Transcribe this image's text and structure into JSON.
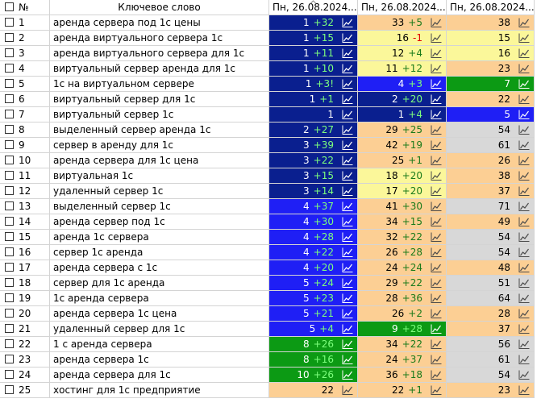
{
  "header": {
    "num_label": "№",
    "keyword_label": "Ключевое слово",
    "periods": [
      "Пн, 26.08.2024...",
      "Пн, 26.08.2024...",
      "Пн, 26.08.2024..."
    ]
  },
  "colors": {
    "dark_blue": "#0a1f8f",
    "blue": "#1f1ff5",
    "green": "#0c9a14",
    "yellow": "#fbf79a",
    "orange": "#fccf94",
    "gray": "#d8d8d8",
    "light_text": "#ffffff",
    "delta_up_light": "#7dff7d",
    "delta_up_dark": "#1a7a1a",
    "delta_down": "#e00000"
  },
  "chart_icon_name": "line-chart-icon",
  "rows": [
    {
      "num": "1",
      "keyword": "аренда сервера под 1с цены",
      "cells": [
        {
          "pos": "1",
          "delta": "+32",
          "bg": "dark_blue"
        },
        {
          "pos": "33",
          "delta": "+5",
          "bg": "orange"
        },
        {
          "pos": "38",
          "delta": "",
          "bg": "orange"
        }
      ]
    },
    {
      "num": "2",
      "keyword": "аренда виртуального сервера 1с",
      "cells": [
        {
          "pos": "1",
          "delta": "+15",
          "bg": "dark_blue"
        },
        {
          "pos": "16",
          "delta": "-1",
          "bg": "yellow"
        },
        {
          "pos": "15",
          "delta": "",
          "bg": "yellow"
        }
      ]
    },
    {
      "num": "3",
      "keyword": "аренда виртуального сервера для 1с",
      "cells": [
        {
          "pos": "1",
          "delta": "+11",
          "bg": "dark_blue"
        },
        {
          "pos": "12",
          "delta": "+4",
          "bg": "yellow"
        },
        {
          "pos": "16",
          "delta": "",
          "bg": "yellow"
        }
      ]
    },
    {
      "num": "4",
      "keyword": "виртуальный сервер аренда для 1с",
      "cells": [
        {
          "pos": "1",
          "delta": "+10",
          "bg": "dark_blue"
        },
        {
          "pos": "11",
          "delta": "+12",
          "bg": "yellow"
        },
        {
          "pos": "23",
          "delta": "",
          "bg": "orange"
        }
      ]
    },
    {
      "num": "5",
      "keyword": "1с на виртуальном сервере",
      "cells": [
        {
          "pos": "1",
          "delta": "+3!",
          "bg": "dark_blue"
        },
        {
          "pos": "4",
          "delta": "+3",
          "bg": "blue"
        },
        {
          "pos": "7",
          "delta": "",
          "bg": "green"
        }
      ]
    },
    {
      "num": "6",
      "keyword": "виртуальный сервер для 1с",
      "cells": [
        {
          "pos": "1",
          "delta": "+1",
          "bg": "dark_blue"
        },
        {
          "pos": "2",
          "delta": "+20",
          "bg": "dark_blue"
        },
        {
          "pos": "22",
          "delta": "",
          "bg": "orange"
        }
      ]
    },
    {
      "num": "7",
      "keyword": "виртуальный сервер 1с",
      "cells": [
        {
          "pos": "1",
          "delta": "",
          "bg": "dark_blue"
        },
        {
          "pos": "1",
          "delta": "+4",
          "bg": "dark_blue"
        },
        {
          "pos": "5",
          "delta": "",
          "bg": "blue"
        }
      ]
    },
    {
      "num": "8",
      "keyword": "выделенный сервер аренда 1с",
      "cells": [
        {
          "pos": "2",
          "delta": "+27",
          "bg": "dark_blue"
        },
        {
          "pos": "29",
          "delta": "+25",
          "bg": "orange"
        },
        {
          "pos": "54",
          "delta": "",
          "bg": "gray"
        }
      ]
    },
    {
      "num": "9",
      "keyword": "сервер в аренду для 1с",
      "cells": [
        {
          "pos": "3",
          "delta": "+39",
          "bg": "dark_blue"
        },
        {
          "pos": "42",
          "delta": "+19",
          "bg": "orange"
        },
        {
          "pos": "61",
          "delta": "",
          "bg": "gray"
        }
      ]
    },
    {
      "num": "10",
      "keyword": "аренда сервера для 1с цена",
      "cells": [
        {
          "pos": "3",
          "delta": "+22",
          "bg": "dark_blue"
        },
        {
          "pos": "25",
          "delta": "+1",
          "bg": "orange"
        },
        {
          "pos": "26",
          "delta": "",
          "bg": "orange"
        }
      ]
    },
    {
      "num": "11",
      "keyword": "виртуальная 1с",
      "cells": [
        {
          "pos": "3",
          "delta": "+15",
          "bg": "dark_blue"
        },
        {
          "pos": "18",
          "delta": "+20",
          "bg": "yellow"
        },
        {
          "pos": "38",
          "delta": "",
          "bg": "orange"
        }
      ]
    },
    {
      "num": "12",
      "keyword": "удаленный сервер 1с",
      "cells": [
        {
          "pos": "3",
          "delta": "+14",
          "bg": "dark_blue"
        },
        {
          "pos": "17",
          "delta": "+20",
          "bg": "yellow"
        },
        {
          "pos": "37",
          "delta": "",
          "bg": "orange"
        }
      ]
    },
    {
      "num": "13",
      "keyword": "выделенный сервер 1с",
      "cells": [
        {
          "pos": "4",
          "delta": "+37",
          "bg": "blue"
        },
        {
          "pos": "41",
          "delta": "+30",
          "bg": "orange"
        },
        {
          "pos": "71",
          "delta": "",
          "bg": "gray"
        }
      ]
    },
    {
      "num": "14",
      "keyword": "аренда сервер под 1с",
      "cells": [
        {
          "pos": "4",
          "delta": "+30",
          "bg": "blue"
        },
        {
          "pos": "34",
          "delta": "+15",
          "bg": "orange"
        },
        {
          "pos": "49",
          "delta": "",
          "bg": "orange"
        }
      ]
    },
    {
      "num": "15",
      "keyword": "аренда 1с сервера",
      "cells": [
        {
          "pos": "4",
          "delta": "+28",
          "bg": "blue"
        },
        {
          "pos": "32",
          "delta": "+22",
          "bg": "orange"
        },
        {
          "pos": "54",
          "delta": "",
          "bg": "gray"
        }
      ]
    },
    {
      "num": "16",
      "keyword": "сервер 1с аренда",
      "cells": [
        {
          "pos": "4",
          "delta": "+22",
          "bg": "blue"
        },
        {
          "pos": "26",
          "delta": "+28",
          "bg": "orange"
        },
        {
          "pos": "54",
          "delta": "",
          "bg": "gray"
        }
      ]
    },
    {
      "num": "17",
      "keyword": "аренда сервера с 1с",
      "cells": [
        {
          "pos": "4",
          "delta": "+20",
          "bg": "blue"
        },
        {
          "pos": "24",
          "delta": "+24",
          "bg": "orange"
        },
        {
          "pos": "48",
          "delta": "",
          "bg": "orange"
        }
      ]
    },
    {
      "num": "18",
      "keyword": "сервер для 1с аренда",
      "cells": [
        {
          "pos": "5",
          "delta": "+24",
          "bg": "blue"
        },
        {
          "pos": "29",
          "delta": "+22",
          "bg": "orange"
        },
        {
          "pos": "51",
          "delta": "",
          "bg": "gray"
        }
      ]
    },
    {
      "num": "19",
      "keyword": "1с аренда сервера",
      "cells": [
        {
          "pos": "5",
          "delta": "+23",
          "bg": "blue"
        },
        {
          "pos": "28",
          "delta": "+36",
          "bg": "orange"
        },
        {
          "pos": "64",
          "delta": "",
          "bg": "gray"
        }
      ]
    },
    {
      "num": "20",
      "keyword": "аренда сервера 1с цена",
      "cells": [
        {
          "pos": "5",
          "delta": "+21",
          "bg": "blue"
        },
        {
          "pos": "26",
          "delta": "+2",
          "bg": "orange"
        },
        {
          "pos": "28",
          "delta": "",
          "bg": "orange"
        }
      ]
    },
    {
      "num": "21",
      "keyword": "удаленный сервер для 1с",
      "cells": [
        {
          "pos": "5",
          "delta": "+4",
          "bg": "blue"
        },
        {
          "pos": "9",
          "delta": "+28",
          "bg": "green"
        },
        {
          "pos": "37",
          "delta": "",
          "bg": "orange"
        }
      ]
    },
    {
      "num": "22",
      "keyword": "1 с аренда сервера",
      "cells": [
        {
          "pos": "8",
          "delta": "+26",
          "bg": "green"
        },
        {
          "pos": "34",
          "delta": "+22",
          "bg": "orange"
        },
        {
          "pos": "56",
          "delta": "",
          "bg": "gray"
        }
      ]
    },
    {
      "num": "23",
      "keyword": "аренда сервера 1с",
      "cells": [
        {
          "pos": "8",
          "delta": "+16",
          "bg": "green"
        },
        {
          "pos": "24",
          "delta": "+37",
          "bg": "orange"
        },
        {
          "pos": "61",
          "delta": "",
          "bg": "gray"
        }
      ]
    },
    {
      "num": "24",
      "keyword": "аренда сервера для 1с",
      "cells": [
        {
          "pos": "10",
          "delta": "+26",
          "bg": "green"
        },
        {
          "pos": "36",
          "delta": "+18",
          "bg": "orange"
        },
        {
          "pos": "54",
          "delta": "",
          "bg": "gray"
        }
      ]
    },
    {
      "num": "25",
      "keyword": "хостинг для 1с предприятие",
      "cells": [
        {
          "pos": "22",
          "delta": "",
          "bg": "orange"
        },
        {
          "pos": "22",
          "delta": "+1",
          "bg": "orange"
        },
        {
          "pos": "23",
          "delta": "",
          "bg": "orange"
        }
      ]
    }
  ]
}
